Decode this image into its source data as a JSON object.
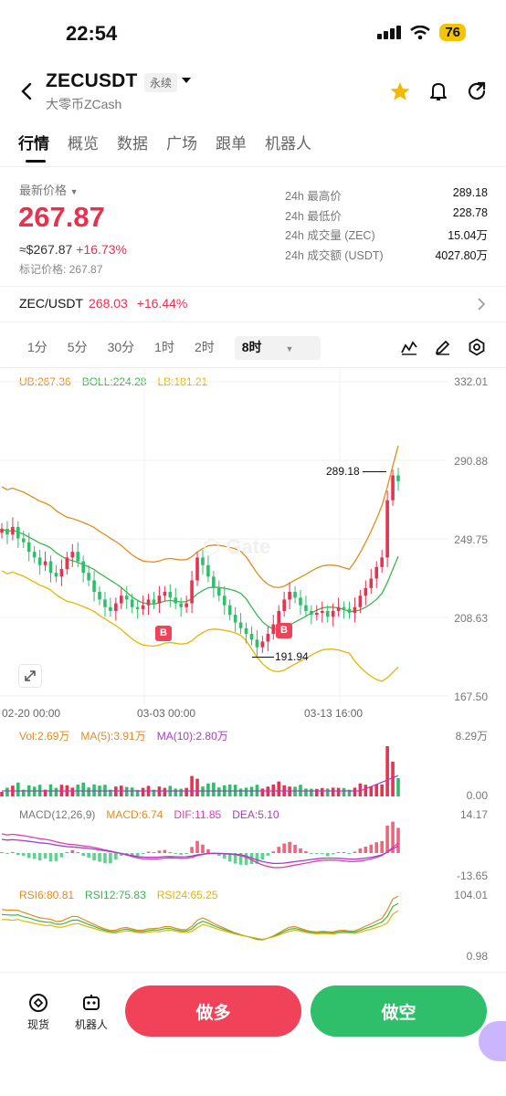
{
  "status": {
    "time": "22:54",
    "battery": "76"
  },
  "header": {
    "title": "ZECUSDT",
    "tag": "永续",
    "subtitle": "大零币ZCash"
  },
  "tabs": [
    "行情",
    "概览",
    "数据",
    "广场",
    "跟单",
    "机器人"
  ],
  "price": {
    "latest_label": "最新价格",
    "last": "267.87",
    "approx": "≈$267.87",
    "change": "+16.73%",
    "mark": "标记价格: 267.87"
  },
  "stats": [
    {
      "k": "24h 最高价",
      "v": "289.18"
    },
    {
      "k": "24h 最低价",
      "v": "228.78"
    },
    {
      "k": "24h 成交量 (ZEC)",
      "v": "15.04万"
    },
    {
      "k": "24h 成交额 (USDT)",
      "v": "4027.80万"
    }
  ],
  "spot": {
    "pair": "ZEC/USDT",
    "price": "268.03",
    "change": "+16.44%"
  },
  "intervals": [
    "1分",
    "5分",
    "30分",
    "1时",
    "2时",
    "8时"
  ],
  "colors": {
    "up": "#e8304f",
    "down": "#2fbf6b",
    "boll_upper": "#e38b1c",
    "boll_mid": "#38b84a",
    "boll_lower": "#e6b400"
  },
  "indicators": {
    "boll": {
      "ub": "UB:267.36",
      "boll": "BOLL:224.28",
      "lb": "LB:181.21"
    },
    "vol": {
      "vol": "Vol:2.69万",
      "ma5": "MA(5):3.91万",
      "ma10": "MA(10):2.80万"
    },
    "macd": {
      "name": "MACD(12,26,9)",
      "macd": "MACD:6.74",
      "dif": "DIF:11.85",
      "dea": "DEA:5.10"
    },
    "rsi": {
      "rsi6": "RSI6:80.81",
      "rsi12": "RSI12:75.83",
      "rsi24": "RSI24:65.25"
    }
  },
  "chart_data": {
    "type": "candlestick",
    "price_axis": [
      "332.01",
      "290.88",
      "249.75",
      "208.63",
      "167.50"
    ],
    "date_axis": [
      "02-20 00:00",
      "03-03 00:00",
      "03-13 16:00"
    ],
    "high_label": "289.18",
    "low_label": "191.94",
    "buy_marker": "B",
    "vol_axis": [
      "8.29万",
      "0.00"
    ],
    "macd_axis": [
      "14.17",
      "-13.65"
    ],
    "rsi_axis": [
      "104.01",
      "0.98"
    ],
    "closes": [
      255,
      252,
      256,
      250,
      248,
      243,
      240,
      236,
      238,
      232,
      230,
      234,
      240,
      243,
      238,
      232,
      228,
      222,
      218,
      214,
      212,
      216,
      220,
      218,
      214,
      213,
      215,
      218,
      216,
      220,
      222,
      219,
      216,
      214,
      216,
      228,
      240,
      236,
      230,
      224,
      220,
      215,
      210,
      206,
      203,
      200,
      197,
      193,
      196,
      200,
      205,
      212,
      218,
      222,
      219,
      215,
      212,
      210,
      211,
      212,
      209,
      212,
      214,
      213,
      211,
      214,
      220,
      224,
      229,
      235,
      240,
      270,
      283,
      280
    ]
  },
  "bottom": {
    "spot_label": "现货",
    "bot_label": "机器人",
    "long": "做多",
    "short": "做空"
  }
}
